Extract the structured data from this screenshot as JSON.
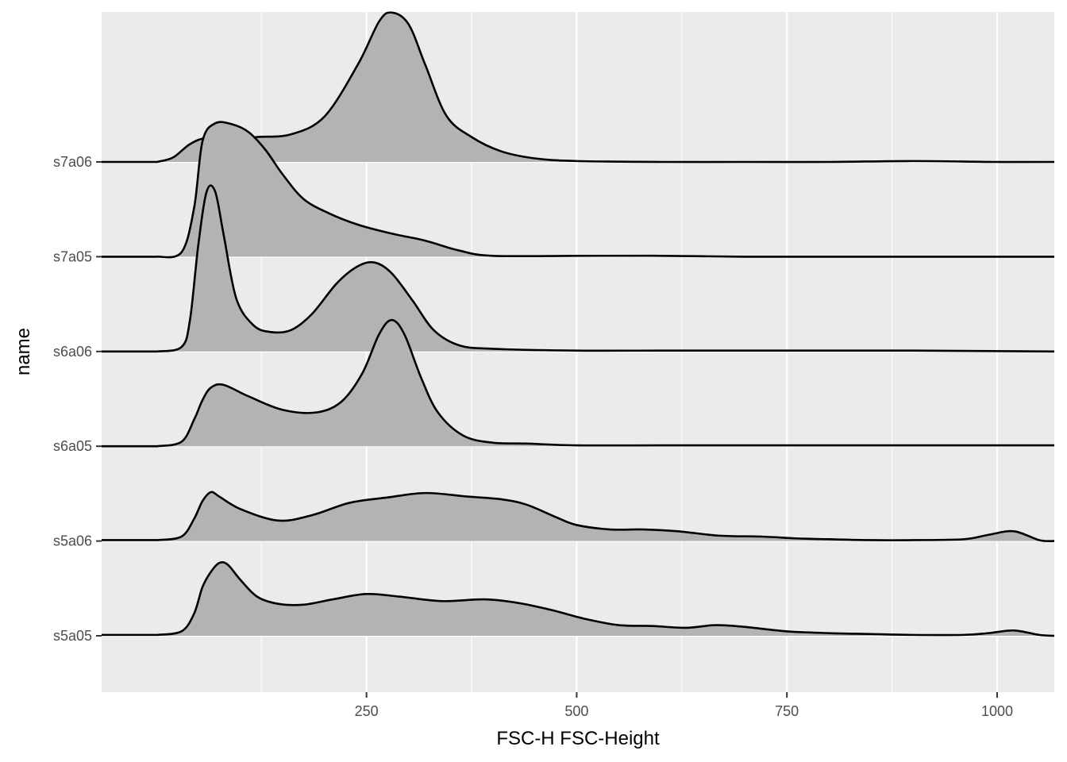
{
  "chart_data": {
    "type": "ridgeline",
    "xlabel": "FSC-H FSC-Height",
    "ylabel": "name",
    "xlim": [
      -65,
      1068
    ],
    "xticks": [
      250,
      500,
      750,
      1000
    ],
    "xtick_labels": [
      "250",
      "500",
      "750",
      "1000"
    ],
    "grid": true,
    "panel_background": "#ebebeb",
    "fill_color": "#b3b3b3",
    "line_color": "#000000",
    "series": [
      {
        "name": "s5a05",
        "points": [
          [
            1,
            0.01
          ],
          [
            30,
            0.05
          ],
          [
            45,
            0.25
          ],
          [
            55,
            0.55
          ],
          [
            65,
            0.72
          ],
          [
            75,
            0.82
          ],
          [
            85,
            0.8
          ],
          [
            100,
            0.63
          ],
          [
            120,
            0.44
          ],
          [
            145,
            0.36
          ],
          [
            175,
            0.35
          ],
          [
            210,
            0.41
          ],
          [
            250,
            0.47
          ],
          [
            290,
            0.44
          ],
          [
            340,
            0.39
          ],
          [
            390,
            0.41
          ],
          [
            430,
            0.37
          ],
          [
            470,
            0.29
          ],
          [
            510,
            0.19
          ],
          [
            550,
            0.12
          ],
          [
            590,
            0.11
          ],
          [
            630,
            0.09
          ],
          [
            665,
            0.12
          ],
          [
            700,
            0.1
          ],
          [
            750,
            0.05
          ],
          [
            800,
            0.03
          ],
          [
            850,
            0.02
          ],
          [
            900,
            0.01
          ],
          [
            960,
            0.01
          ],
          [
            990,
            0.03
          ],
          [
            1020,
            0.06
          ],
          [
            1050,
            0.01
          ],
          [
            1068,
            0.0
          ]
        ]
      },
      {
        "name": "s5a06",
        "points": [
          [
            1,
            0.01
          ],
          [
            30,
            0.05
          ],
          [
            45,
            0.25
          ],
          [
            55,
            0.45
          ],
          [
            65,
            0.55
          ],
          [
            75,
            0.5
          ],
          [
            100,
            0.36
          ],
          [
            145,
            0.23
          ],
          [
            185,
            0.29
          ],
          [
            230,
            0.43
          ],
          [
            275,
            0.49
          ],
          [
            320,
            0.54
          ],
          [
            370,
            0.5
          ],
          [
            410,
            0.47
          ],
          [
            440,
            0.41
          ],
          [
            475,
            0.27
          ],
          [
            500,
            0.18
          ],
          [
            540,
            0.13
          ],
          [
            580,
            0.13
          ],
          [
            620,
            0.11
          ],
          [
            670,
            0.06
          ],
          [
            720,
            0.05
          ],
          [
            760,
            0.03
          ],
          [
            800,
            0.02
          ],
          [
            850,
            0.01
          ],
          [
            900,
            0.01
          ],
          [
            960,
            0.02
          ],
          [
            990,
            0.07
          ],
          [
            1020,
            0.11
          ],
          [
            1050,
            0.01
          ],
          [
            1068,
            0.0
          ]
        ]
      },
      {
        "name": "s6a05",
        "points": [
          [
            1,
            0.0
          ],
          [
            30,
            0.05
          ],
          [
            45,
            0.3
          ],
          [
            55,
            0.52
          ],
          [
            65,
            0.66
          ],
          [
            80,
            0.69
          ],
          [
            110,
            0.56
          ],
          [
            150,
            0.41
          ],
          [
            190,
            0.38
          ],
          [
            220,
            0.5
          ],
          [
            245,
            0.82
          ],
          [
            265,
            1.26
          ],
          [
            280,
            1.42
          ],
          [
            295,
            1.26
          ],
          [
            315,
            0.77
          ],
          [
            335,
            0.38
          ],
          [
            365,
            0.12
          ],
          [
            400,
            0.04
          ],
          [
            440,
            0.03
          ],
          [
            500,
            0.01
          ],
          [
            600,
            0.01
          ],
          [
            700,
            0.01
          ],
          [
            800,
            0.01
          ],
          [
            900,
            0.01
          ],
          [
            1000,
            0.01
          ],
          [
            1068,
            0.01
          ]
        ]
      },
      {
        "name": "s6a06",
        "points": [
          [
            1,
            0.0
          ],
          [
            30,
            0.05
          ],
          [
            40,
            0.35
          ],
          [
            50,
            1.2
          ],
          [
            60,
            1.8
          ],
          [
            70,
            1.8
          ],
          [
            80,
            1.32
          ],
          [
            95,
            0.6
          ],
          [
            115,
            0.3
          ],
          [
            135,
            0.22
          ],
          [
            160,
            0.24
          ],
          [
            185,
            0.42
          ],
          [
            215,
            0.77
          ],
          [
            240,
            0.96
          ],
          [
            260,
            1.0
          ],
          [
            280,
            0.88
          ],
          [
            305,
            0.57
          ],
          [
            330,
            0.24
          ],
          [
            360,
            0.07
          ],
          [
            400,
            0.03
          ],
          [
            500,
            0.01
          ],
          [
            600,
            0.01
          ],
          [
            700,
            0.01
          ],
          [
            800,
            0.01
          ],
          [
            900,
            0.01
          ],
          [
            1068,
            0.0
          ]
        ]
      },
      {
        "name": "s7a05",
        "points": [
          [
            1,
            0.0
          ],
          [
            30,
            0.05
          ],
          [
            45,
            0.55
          ],
          [
            55,
            1.3
          ],
          [
            70,
            1.5
          ],
          [
            90,
            1.49
          ],
          [
            110,
            1.4
          ],
          [
            130,
            1.2
          ],
          [
            150,
            0.93
          ],
          [
            175,
            0.65
          ],
          [
            205,
            0.49
          ],
          [
            240,
            0.36
          ],
          [
            280,
            0.26
          ],
          [
            320,
            0.18
          ],
          [
            360,
            0.07
          ],
          [
            400,
            0.01
          ],
          [
            500,
            0.01
          ],
          [
            600,
            0.01
          ],
          [
            700,
            0.0
          ],
          [
            800,
            0.0
          ],
          [
            900,
            0.0
          ],
          [
            1000,
            0.0
          ],
          [
            1068,
            0.0
          ]
        ]
      },
      {
        "name": "s7a06",
        "points": [
          [
            1,
            0.0
          ],
          [
            20,
            0.05
          ],
          [
            40,
            0.2
          ],
          [
            60,
            0.27
          ],
          [
            90,
            0.25
          ],
          [
            120,
            0.28
          ],
          [
            160,
            0.31
          ],
          [
            200,
            0.51
          ],
          [
            240,
            1.1
          ],
          [
            265,
            1.58
          ],
          [
            280,
            1.68
          ],
          [
            300,
            1.55
          ],
          [
            320,
            1.09
          ],
          [
            345,
            0.52
          ],
          [
            375,
            0.28
          ],
          [
            410,
            0.12
          ],
          [
            450,
            0.04
          ],
          [
            500,
            0.01
          ],
          [
            600,
            0.0
          ],
          [
            700,
            0.0
          ],
          [
            800,
            0.0
          ],
          [
            900,
            0.01
          ],
          [
            1000,
            0.0
          ],
          [
            1068,
            0.0
          ]
        ]
      }
    ]
  }
}
